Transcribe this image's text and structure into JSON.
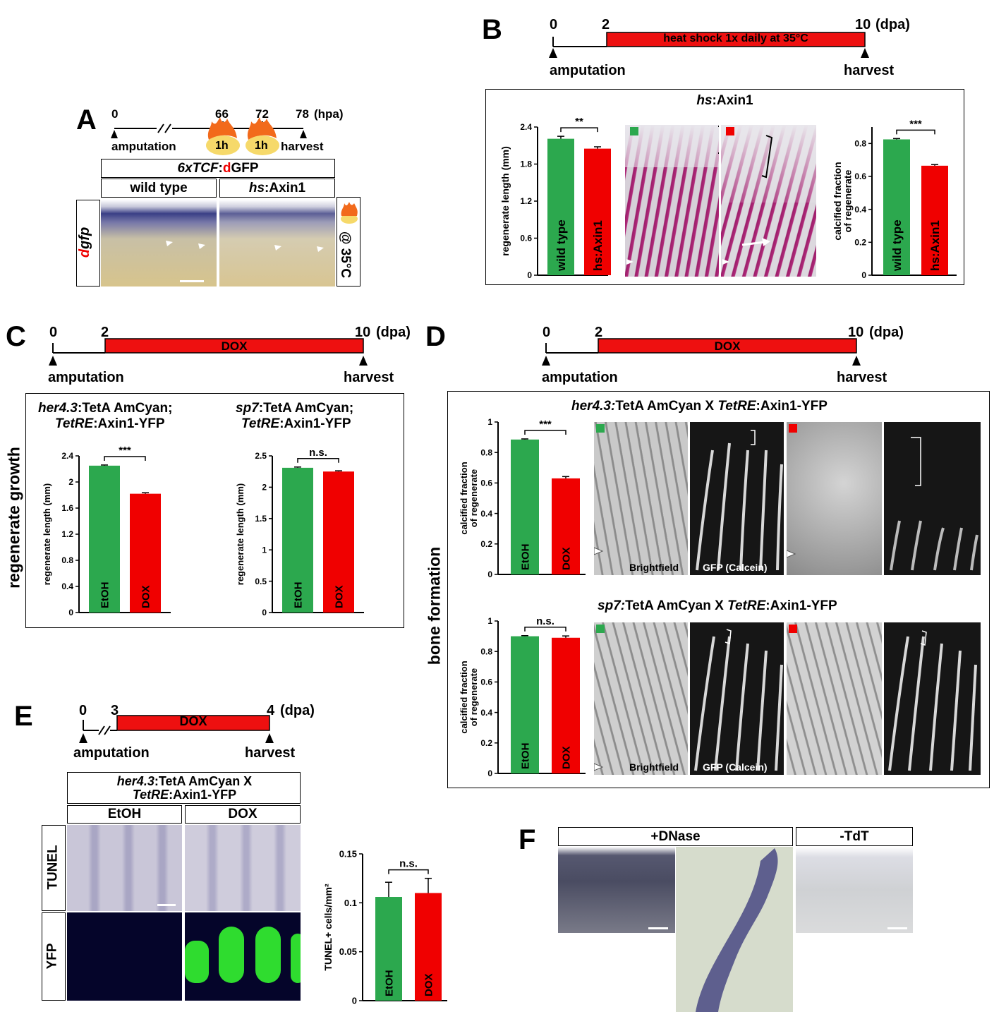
{
  "colors": {
    "wt": "#2ca84e",
    "treat": "#f00000",
    "bar": "#ee1010"
  },
  "panels": {
    "A": "A",
    "B": "B",
    "C": "C",
    "D": "D",
    "E": "E",
    "F": "F"
  },
  "timelineA": {
    "ticks": [
      "0",
      "66",
      "72",
      "78"
    ],
    "unit": "(hpa)",
    "left": "amputation",
    "right": "harvest",
    "pulse": "1h"
  },
  "A": {
    "reporter_italic": "6xTCF",
    "reporter_sep": ":",
    "reporter_d": "d",
    "reporter_rest": "GFP",
    "col1": "wild type",
    "col2_italic": "hs",
    "col2_rest": ":Axin1",
    "row_d": "d",
    "row_rest": "gfp",
    "side": "@ 35°C"
  },
  "timelineB": {
    "ticks": [
      "0",
      "2",
      "10"
    ],
    "unit": "(dpa)",
    "bar": "heat shock 1x daily at 35°C",
    "left": "amputation",
    "right": "harvest"
  },
  "B": {
    "title_italic": "hs",
    "title_rest": ":Axin1"
  },
  "timelineC": {
    "ticks": [
      "0",
      "2",
      "10"
    ],
    "unit": "(dpa)",
    "bar": "DOX",
    "left": "amputation",
    "right": "harvest"
  },
  "C": {
    "side_label": "regenerate growth",
    "left_t1_italic": "her4.3",
    "left_t1_rest": ":TetA AmCyan;",
    "left_t2_italic": "TetRE",
    "left_t2_rest": ":Axin1-YFP",
    "right_t1_italic": "sp7",
    "right_t1_rest": ":TetA AmCyan;",
    "right_t2_italic": "TetRE",
    "right_t2_rest": ":Axin1-YFP"
  },
  "timelineD": {
    "ticks": [
      "0",
      "2",
      "10"
    ],
    "unit": "(dpa)",
    "bar": "DOX",
    "left": "amputation",
    "right": "harvest"
  },
  "D": {
    "side_label": "bone formation",
    "top_title_italic": "her4.3:",
    "top_title_mid": "TetA AmCyan X ",
    "top_title_italic2": "TetRE",
    "top_title_rest": ":Axin1-YFP",
    "bot_title_italic": "sp7:",
    "bot_title_mid": "TetA AmCyan X ",
    "bot_title_italic2": "TetRE",
    "bot_title_rest": ":Axin1-YFP",
    "bf": "Brightfield",
    "gfp": "GFP (Calcein)"
  },
  "timelineE": {
    "ticks": [
      "0",
      "3",
      "4"
    ],
    "unit": "(dpa)",
    "bar": "DOX",
    "left": "amputation",
    "right": "harvest"
  },
  "E": {
    "title1_italic": "her4.3",
    "title1_rest": ":TetA AmCyan X",
    "title2_italic": "TetRE",
    "title2_rest": ":Axin1-YFP",
    "col1": "EtOH",
    "col2": "DOX",
    "row1": "TUNEL",
    "row2": "YFP"
  },
  "F": {
    "col1": "+DNase",
    "col2": "-TdT"
  },
  "chart_data": [
    {
      "id": "B1",
      "type": "bar",
      "categories": [
        "wild type",
        "hs:Axin1"
      ],
      "values": [
        2.21,
        2.05
      ],
      "errors": [
        0.04,
        0.03
      ],
      "ylabel": "regenerate length (mm)",
      "ylim": [
        0,
        2.4
      ],
      "yticks": [
        "0",
        "0.6",
        "1.2",
        "1.8",
        "2.4"
      ],
      "sig": "**"
    },
    {
      "id": "B2",
      "type": "bar",
      "categories": [
        "wild type",
        "hs:Axin1"
      ],
      "values": [
        0.825,
        0.665
      ],
      "errors": [
        0.005,
        0.007
      ],
      "ylabel": "calcified fraction of regenerate",
      "ylim": [
        0,
        0.9
      ],
      "yticks": [
        "0",
        "0.2",
        "0.4",
        "0.6",
        "0.8"
      ],
      "sig": "***"
    },
    {
      "id": "C1",
      "type": "bar",
      "categories": [
        "EtOH",
        "DOX"
      ],
      "values": [
        2.25,
        1.82
      ],
      "errors": [
        0.01,
        0.015
      ],
      "ylabel": "regenerate length (mm)",
      "ylim": [
        0,
        2.4
      ],
      "yticks": [
        "0",
        "0.4",
        "0.8",
        "1.2",
        "1.6",
        "2",
        "2.4"
      ],
      "sig": "***"
    },
    {
      "id": "C2",
      "type": "bar",
      "categories": [
        "EtOH",
        "DOX"
      ],
      "values": [
        2.31,
        2.25
      ],
      "errors": [
        0.012,
        0.012
      ],
      "ylabel": "regenerate length (mm)",
      "ylim": [
        0,
        2.5
      ],
      "yticks": [
        "0",
        "0.5",
        "1",
        "1.5",
        "2",
        "2.5"
      ],
      "sig": "n.s."
    },
    {
      "id": "D1",
      "type": "bar",
      "categories": [
        "EtOH",
        "DOX"
      ],
      "values": [
        0.885,
        0.63
      ],
      "errors": [
        0.004,
        0.012
      ],
      "ylabel": "calcified fraction of regenerate",
      "ylim": [
        0,
        1
      ],
      "yticks": [
        "0",
        "0.2",
        "0.4",
        "0.6",
        "0.8",
        "1"
      ],
      "sig": "***"
    },
    {
      "id": "D2",
      "type": "bar",
      "categories": [
        "EtOH",
        "DOX"
      ],
      "values": [
        0.9,
        0.89
      ],
      "errors": [
        0.004,
        0.012
      ],
      "ylabel": "calcified fraction of regenerate",
      "ylim": [
        0,
        1
      ],
      "yticks": [
        "0",
        "0.2",
        "0.4",
        "0.6",
        "0.8",
        "1"
      ],
      "sig": "n.s."
    },
    {
      "id": "E1",
      "type": "bar",
      "categories": [
        "EtOH",
        "DOX"
      ],
      "values": [
        0.106,
        0.11
      ],
      "errors": [
        0.015,
        0.015
      ],
      "ylabel": "TUNEL+ cells/mm²",
      "ylim": [
        0,
        0.15
      ],
      "yticks": [
        "0",
        "0.05",
        "0.1",
        "0.15"
      ],
      "sig": "n.s."
    }
  ]
}
